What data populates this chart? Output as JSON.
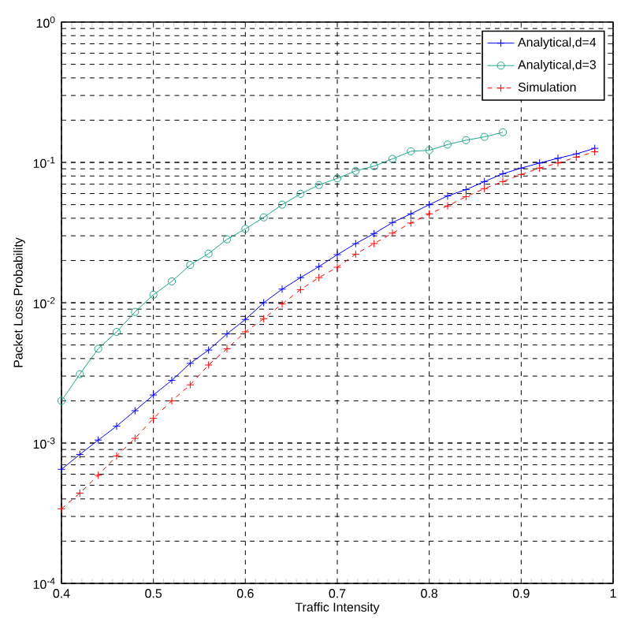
{
  "chart_data": {
    "type": "line",
    "xlabel": "Traffic Intensity",
    "ylabel": "Packet Loss Probability",
    "x": [
      0.4,
      0.42,
      0.44,
      0.46,
      0.48,
      0.5,
      0.52,
      0.54,
      0.56,
      0.58,
      0.6,
      0.62,
      0.64,
      0.66,
      0.68,
      0.7,
      0.72,
      0.74,
      0.76,
      0.78,
      0.8,
      0.82,
      0.84,
      0.86,
      0.88,
      0.9,
      0.92,
      0.94,
      0.96,
      0.98
    ],
    "series": [
      {
        "name": "Analytical,d=4",
        "color": "#0000ff",
        "marker": "cross",
        "line_style": "solid",
        "values": [
          0.00065,
          0.00083,
          0.00105,
          0.00132,
          0.0017,
          0.0022,
          0.0028,
          0.0037,
          0.0046,
          0.006,
          0.0076,
          0.01,
          0.0125,
          0.0151,
          0.0181,
          0.022,
          0.0264,
          0.0311,
          0.0373,
          0.043,
          0.05,
          0.0577,
          0.064,
          0.073,
          0.083,
          0.091,
          0.099,
          0.107,
          0.115,
          0.126
        ]
      },
      {
        "name": "Analytical,d=3",
        "color": "#1fa68f",
        "marker": "circle",
        "line_style": "solid",
        "values": [
          0.002,
          0.0031,
          0.0047,
          0.0062,
          0.0086,
          0.0114,
          0.0142,
          0.0186,
          0.0224,
          0.0283,
          0.0336,
          0.0406,
          0.05,
          0.0597,
          0.069,
          0.077,
          0.087,
          0.094,
          0.106,
          0.12,
          0.122,
          0.134,
          0.144,
          0.152,
          0.164,
          null,
          null,
          null,
          null,
          null
        ]
      },
      {
        "name": "Simulation",
        "color": "#ff0000",
        "marker": "cross",
        "line_style": "dashed",
        "values": [
          0.00034,
          0.00044,
          0.00059,
          0.00081,
          0.00108,
          0.0015,
          0.002,
          0.0026,
          0.0036,
          0.0047,
          0.0062,
          0.0077,
          0.0098,
          0.0124,
          0.0151,
          0.0179,
          0.0222,
          0.0264,
          0.0313,
          0.037,
          0.043,
          0.049,
          0.057,
          0.065,
          0.073,
          0.082,
          0.091,
          0.099,
          0.109,
          0.119
        ]
      }
    ],
    "log": "y",
    "xlim": [
      0.4,
      1
    ],
    "ylim": [
      0.0001,
      1
    ],
    "xticks": [
      0.4,
      0.5,
      0.6,
      0.7,
      0.8,
      0.9,
      1
    ],
    "yticks": [
      {
        "value": 0.0001,
        "label": "10$^{-4}$"
      },
      {
        "value": 0.001,
        "label": "10$^{-3}$"
      },
      {
        "value": 0.01,
        "label": "10$^{-2}$"
      },
      {
        "value": 0.1,
        "label": "10$^{-1}$"
      },
      {
        "value": 1,
        "label": "10$^{0}$"
      }
    ],
    "grid": true,
    "legend": "top right"
  }
}
